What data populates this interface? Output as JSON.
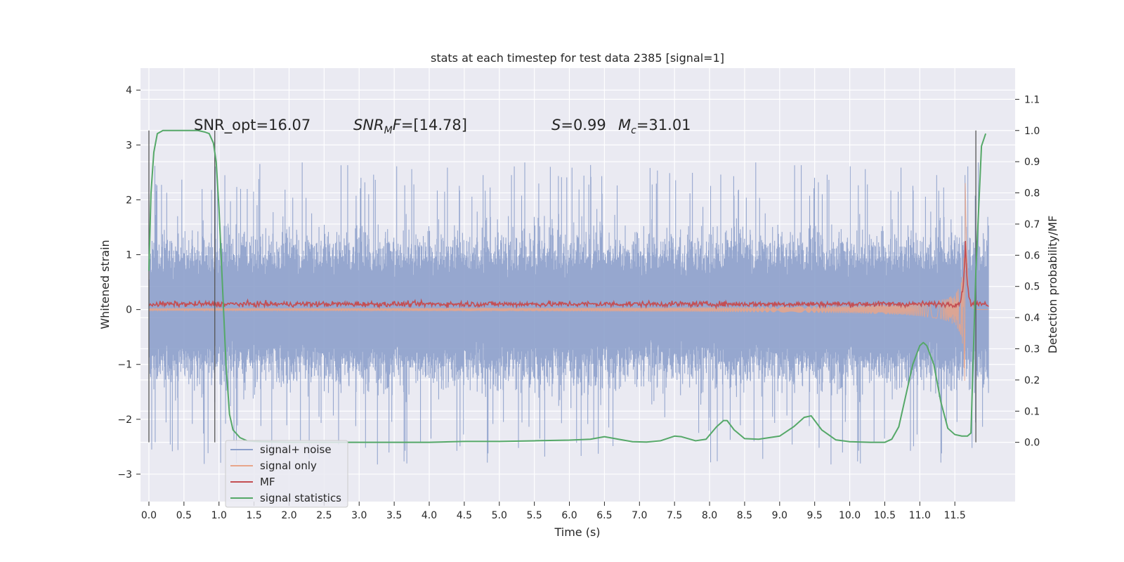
{
  "chart_data": {
    "type": "line",
    "title": "stats at each timestep for test data 2385 [signal=1]",
    "xlabel": "Time (s)",
    "ylabel": "Whitened strain",
    "y2label": "Detection probability/MF",
    "xlim": [
      -0.12,
      12.36
    ],
    "ylim": [
      -3.5,
      4.4
    ],
    "y2lim": [
      -0.19,
      1.2
    ],
    "x_ticks": [
      0.0,
      0.5,
      1.0,
      1.5,
      2.0,
      2.5,
      3.0,
      3.5,
      4.0,
      4.5,
      5.0,
      5.5,
      6.0,
      6.5,
      7.0,
      7.5,
      8.0,
      8.5,
      9.0,
      9.5,
      10.0,
      10.5,
      11.0,
      11.5
    ],
    "x_tick_labels": [
      "0.0",
      "0.5",
      "1.0",
      "1.5",
      "2.0",
      "2.5",
      "3.0",
      "3.5",
      "4.0",
      "4.5",
      "5.0",
      "5.5",
      "6.0",
      "6.5",
      "7.0",
      "7.5",
      "8.0",
      "8.5",
      "9.0",
      "9.5",
      "10.0",
      "10.5",
      "11.0",
      "11.5"
    ],
    "y_ticks": [
      -3,
      -2,
      -1,
      0,
      1,
      2,
      3,
      4
    ],
    "y_tick_labels": [
      "−3",
      "−2",
      "−1",
      "0",
      "1",
      "2",
      "3",
      "4"
    ],
    "y2_ticks": [
      0.0,
      0.1,
      0.2,
      0.3,
      0.4,
      0.5,
      0.6,
      0.7,
      0.8,
      0.9,
      1.0,
      1.1
    ],
    "y2_tick_labels": [
      "0.0",
      "0.1",
      "0.2",
      "0.3",
      "0.4",
      "0.5",
      "0.6",
      "0.7",
      "0.8",
      "0.9",
      "1.0",
      "1.1"
    ],
    "grid": true,
    "legend_position": "lower-left",
    "annotations": {
      "snr_opt": "SNR_opt=16.07",
      "snr_mf_name": "SNR",
      "snr_mf_sub": "M",
      "snr_mf_rest": "F",
      "snr_mf_value": "=[14.78]",
      "s_name": "S",
      "s_value": "=0.99",
      "mc_name": "M",
      "mc_sub": "c",
      "mc_value": "=31.01"
    },
    "detection_windows": [
      {
        "start": 0.0,
        "end": 0.94
      },
      {
        "start": 11.8,
        "end": 11.8
      }
    ],
    "series": [
      {
        "name": "signal+ noise",
        "color": "#8da0cb",
        "axis": "left",
        "kind": "noise",
        "x_range": [
          0.0,
          11.98
        ],
        "envelope_typical": 1.5,
        "envelope_max": 2.7
      },
      {
        "name": "signal only",
        "color": "#e8a58a",
        "axis": "left",
        "kind": "chirp",
        "x_range": [
          0.0,
          11.98
        ],
        "peak_time": 11.65,
        "peak_amplitude": 2.6
      },
      {
        "name": "MF",
        "color": "#c44e52",
        "axis": "left",
        "kind": "mf",
        "x_range": [
          0.0,
          11.98
        ],
        "baseline": 0.1,
        "peak_time": 11.65,
        "peak_value": 1.3
      },
      {
        "name": "signal statistics",
        "color": "#55a868",
        "axis": "right",
        "kind": "line",
        "x": [
          0.0,
          0.03,
          0.07,
          0.12,
          0.2,
          0.3,
          0.5,
          0.7,
          0.8,
          0.86,
          0.92,
          0.96,
          1.0,
          1.05,
          1.1,
          1.15,
          1.2,
          1.3,
          1.4,
          1.6,
          2.0,
          2.5,
          3.0,
          3.5,
          4.0,
          4.5,
          5.0,
          5.5,
          6.0,
          6.3,
          6.5,
          6.7,
          6.9,
          7.1,
          7.3,
          7.5,
          7.6,
          7.8,
          7.95,
          8.1,
          8.2,
          8.25,
          8.35,
          8.5,
          8.7,
          9.0,
          9.2,
          9.35,
          9.45,
          9.6,
          9.8,
          10.0,
          10.3,
          10.5,
          10.6,
          10.7,
          10.8,
          10.9,
          11.0,
          11.05,
          11.1,
          11.2,
          11.3,
          11.4,
          11.5,
          11.6,
          11.68,
          11.73,
          11.8,
          11.88,
          11.94
        ],
        "y": [
          0.55,
          0.8,
          0.93,
          0.99,
          1.0,
          1.0,
          1.0,
          1.0,
          0.995,
          0.99,
          0.96,
          0.9,
          0.75,
          0.5,
          0.25,
          0.09,
          0.04,
          0.015,
          0.005,
          0.002,
          0.0,
          0.0,
          0.0,
          0.0,
          0.0,
          0.003,
          0.003,
          0.005,
          0.007,
          0.01,
          0.018,
          0.01,
          0.002,
          0.001,
          0.005,
          0.02,
          0.018,
          0.005,
          0.01,
          0.05,
          0.07,
          0.07,
          0.04,
          0.012,
          0.01,
          0.02,
          0.05,
          0.08,
          0.085,
          0.04,
          0.008,
          0.002,
          0.0,
          0.0,
          0.01,
          0.05,
          0.15,
          0.25,
          0.31,
          0.32,
          0.31,
          0.25,
          0.13,
          0.045,
          0.025,
          0.02,
          0.02,
          0.03,
          0.55,
          0.95,
          0.99
        ]
      }
    ]
  }
}
